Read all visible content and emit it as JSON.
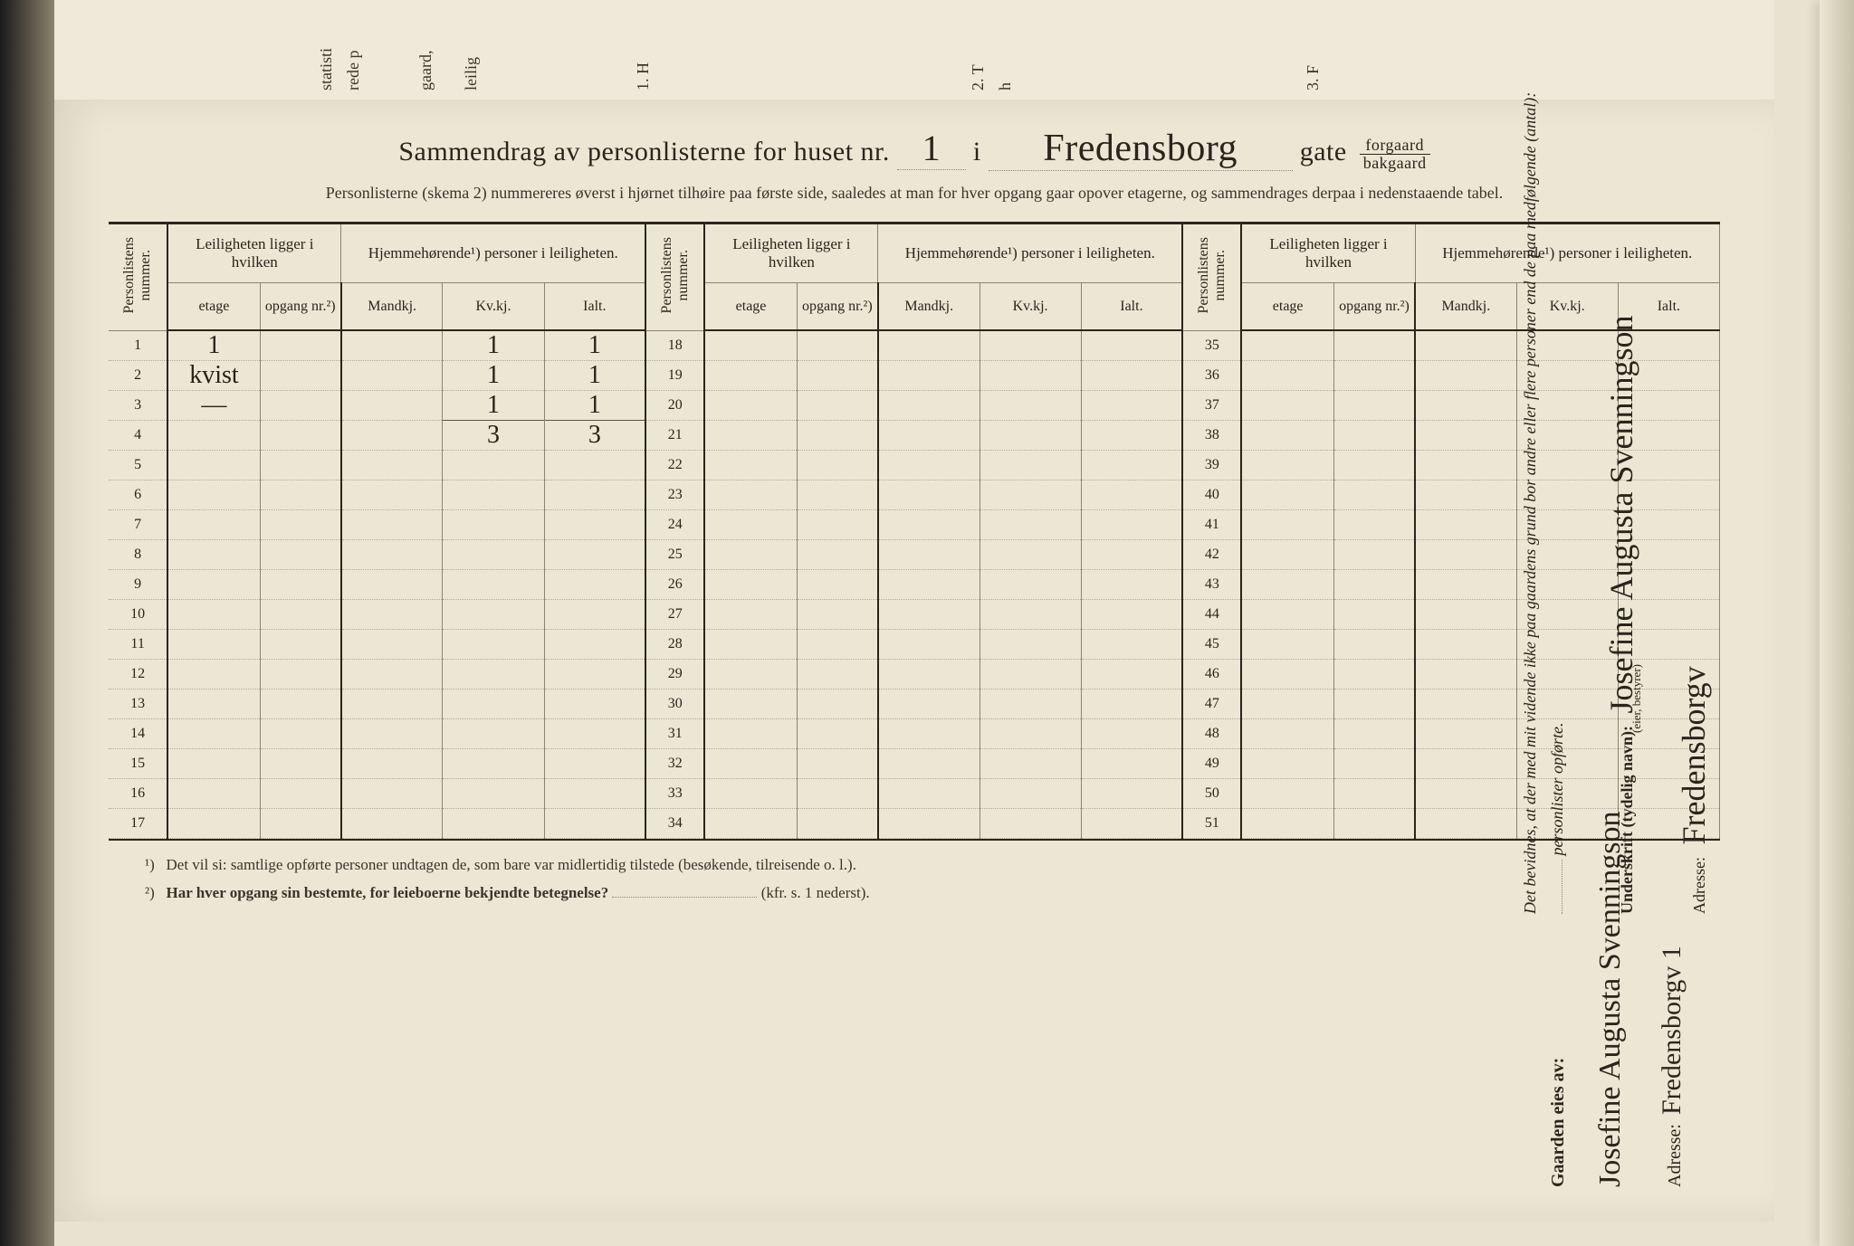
{
  "colors": {
    "paper": "#ece6d4",
    "ink": "#2a251c",
    "faint_line": "#b0aa94",
    "line": "#8a8470",
    "dark_bg": "#2a2a2a"
  },
  "top_strip_labels": [
    "statisti",
    "rede p",
    "gaard,",
    "leilig",
    "1. H",
    "2. T",
    "h",
    "3. F"
  ],
  "title": {
    "prefix": "Sammendrag av personlisterne for huset nr.",
    "house_nr": "1",
    "in_word": "i",
    "street": "Fredensborg",
    "gate_word": "gate",
    "forgaard": "forgaard",
    "bakgaard": "bakgaard"
  },
  "subtitle": "Personlisterne (skema 2) nummereres øverst i hjørnet tilhøire paa første side, saaledes at man for hver opgang gaar opover etagerne, og sammendrages derpaa i nedenstaaende tabel.",
  "header": {
    "personlist_nr": "Personlistens nummer.",
    "leilighet": "Leiligheten ligger i hvilken",
    "hjemme": "Hjemmehørende¹) personer i leiligheten.",
    "etage": "etage",
    "opgang": "opgang nr.²)",
    "mandkj": "Mandkj.",
    "kvkj": "Kv.kj.",
    "ialt": "Ialt."
  },
  "blocks": [
    {
      "start": 1,
      "end": 17
    },
    {
      "start": 18,
      "end": 34
    },
    {
      "start": 35,
      "end": 51
    }
  ],
  "rows_per_block": 17,
  "entries": {
    "1": {
      "etage": "1",
      "kvkj": "1",
      "ialt": "1"
    },
    "2": {
      "etage": "kvist",
      "kvkj": "1",
      "ialt": "1"
    },
    "3": {
      "etage": "—",
      "kvkj": "1",
      "ialt": "1"
    }
  },
  "sums": {
    "kvkj": "3",
    "ialt": "3"
  },
  "footnotes": {
    "f1_label": "¹)",
    "f1": "Det vil si: samtlige opførte personer undtagen de, som bare var midlertidig tilstede (besøkende, tilreisende o. l.).",
    "f2_label": "²)",
    "f2": "Har hver opgang sin bestemte, for leieboerne bekjendte betegnelse?",
    "f2_tail": "(kfr. s. 1 nederst)."
  },
  "right_panel": {
    "declaration": "Det bevidnes, at der med mit vidende ikke paa gaardens grund bor andre eller flere personer end de paa medfølgende (antal):",
    "personlister": "personlister opførte.",
    "underskrift_label": "Underskrift (tydelig navn):",
    "bestyrer": "(eier, bestyrer)",
    "signature": "Josefine Augusta Svenningson",
    "adresse_label": "Adresse:",
    "adresse": "Fredensborgv"
  },
  "owner": {
    "label": "Gaarden eies av:",
    "name": "Josefine Augusta Svenningson",
    "adresse_label": "Adresse:",
    "adresse": "Fredensborgv 1"
  }
}
